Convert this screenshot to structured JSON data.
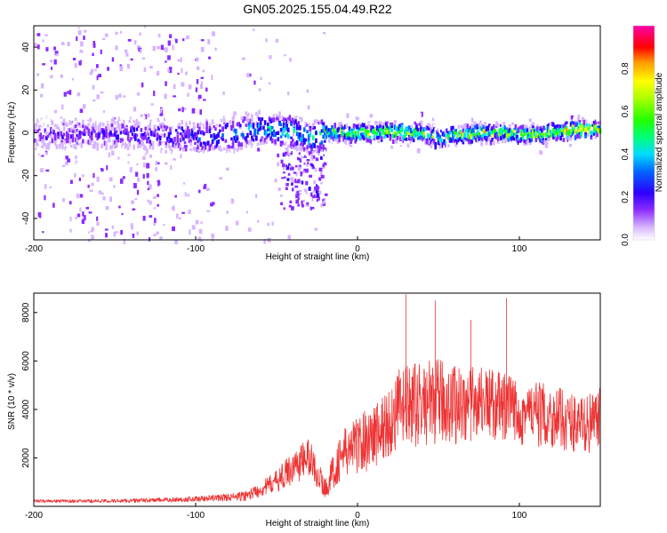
{
  "chart_data": [
    {
      "type": "heatmap",
      "title": "GN05.2025.155.04.49.R22",
      "xlabel": "Height of straight line (km)",
      "ylabel": "Frequency (Hz)",
      "xlim": [
        -200,
        150
      ],
      "ylim": [
        -50,
        50
      ],
      "x_ticks": [
        -200,
        -100,
        0,
        100
      ],
      "y_ticks": [
        -40,
        -20,
        0,
        20,
        40
      ],
      "colorbar": {
        "label": "Normalized spectral amplitude",
        "range": [
          0,
          1
        ],
        "ticks": [
          "0.0",
          "0.2",
          "0.4",
          "0.6",
          "0.8"
        ]
      },
      "ridge": {
        "x": [
          -200,
          -150,
          -100,
          -80,
          -60,
          -40,
          -30,
          -20,
          0,
          20,
          40,
          50,
          60,
          80,
          100,
          120,
          140,
          150
        ],
        "freq_center": [
          0,
          0,
          -1,
          0,
          3,
          1,
          -2,
          1,
          1,
          1,
          1,
          -2,
          0,
          1,
          0,
          1,
          3,
          2
        ],
        "peak_amplitude": [
          0.25,
          0.28,
          0.35,
          0.45,
          0.5,
          0.55,
          0.5,
          0.7,
          0.8,
          0.85,
          0.8,
          0.75,
          0.8,
          0.85,
          0.8,
          0.85,
          0.9,
          0.85
        ]
      },
      "grid": false,
      "legend": "none"
    },
    {
      "type": "line",
      "xlabel": "Height of straight line (km)",
      "ylabel": "SNR (10 * v/v)",
      "xlim": [
        -200,
        150
      ],
      "ylim": [
        0,
        8800
      ],
      "x_ticks": [
        -200,
        -100,
        0,
        100
      ],
      "y_ticks": [
        2000,
        4000,
        6000,
        8000
      ],
      "color": "#ee3333",
      "envelope": {
        "x": [
          -200,
          -150,
          -110,
          -90,
          -70,
          -60,
          -50,
          -40,
          -30,
          -20,
          -15,
          -10,
          0,
          10,
          20,
          25,
          30,
          50,
          70,
          75,
          90,
          100,
          120,
          140,
          150
        ],
        "baseline": [
          200,
          200,
          250,
          300,
          350,
          600,
          900,
          1400,
          1800,
          600,
          1200,
          1800,
          2200,
          2500,
          3000,
          3500,
          3600,
          3800,
          3700,
          4000,
          3600,
          3500,
          3300,
          3000,
          3200
        ],
        "amplitude": [
          120,
          150,
          200,
          250,
          400,
          600,
          900,
          1400,
          1700,
          800,
          1500,
          2000,
          2400,
          2800,
          3000,
          3300,
          3400,
          3500,
          3300,
          2800,
          3000,
          2800,
          2600,
          2400,
          2600
        ]
      },
      "peaks": [
        {
          "x": 30,
          "y": 8750
        },
        {
          "x": 48,
          "y": 8500
        },
        {
          "x": 92,
          "y": 8600
        },
        {
          "x": 70,
          "y": 7700
        }
      ],
      "grid": false,
      "legend": "none"
    }
  ]
}
